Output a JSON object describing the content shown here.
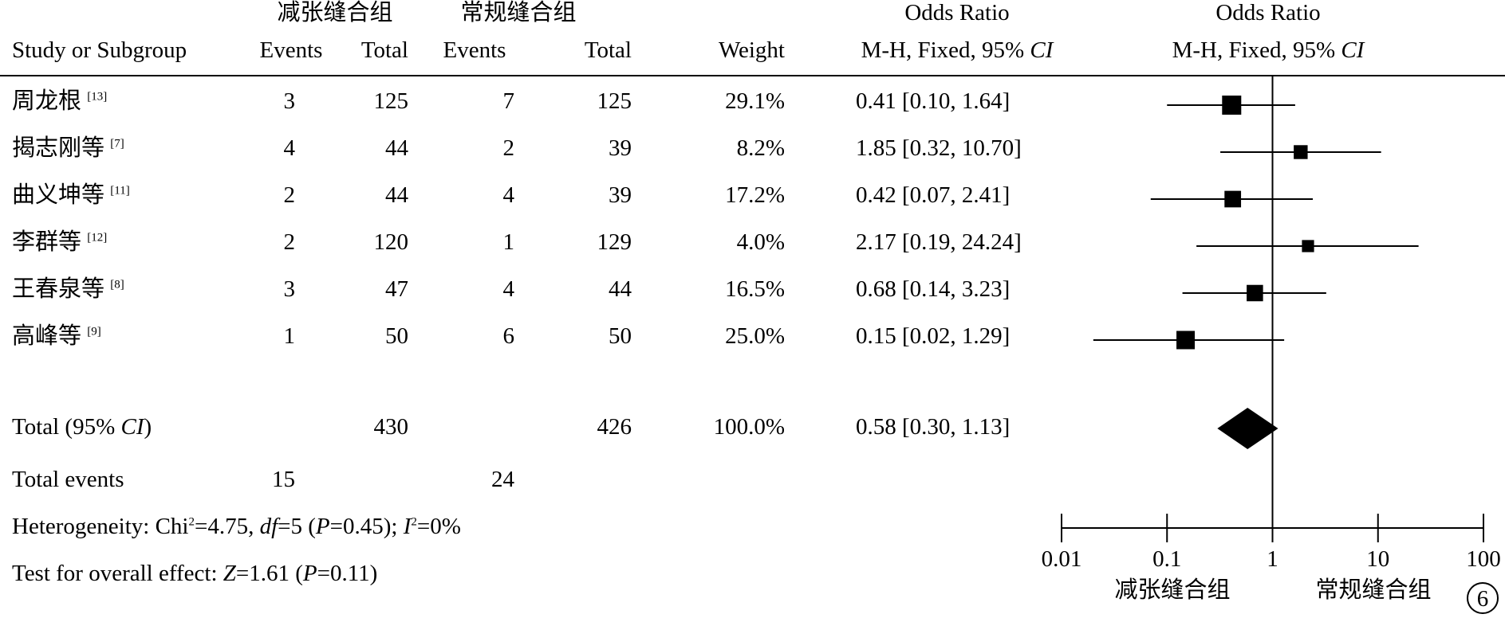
{
  "header": {
    "group_a": "减张缝合组",
    "group_b": "常规缝合组",
    "or_title": "Odds Ratio",
    "or_title_plot": "Odds Ratio",
    "col_study": "Study or Subgroup",
    "col_events_a": "Events",
    "col_total_a": "Total",
    "col_events_b": "Events",
    "col_total_b": "Total",
    "col_weight": "Weight",
    "col_method": "M-H, Fixed, 95%",
    "col_method_ci": "CI",
    "col_method_plot": "M-H, Fixed, 95%",
    "col_method_plot_ci": "CI"
  },
  "studies": [
    {
      "name": "周龙根",
      "ref": "[13]",
      "events_a": "3",
      "total_a": "125",
      "events_b": "7",
      "total_b": "125",
      "weight": "29.1%",
      "or_text": "0.41 [0.10, 1.64]"
    },
    {
      "name": "揭志刚等",
      "ref": "[7]",
      "events_a": "4",
      "total_a": "44",
      "events_b": "2",
      "total_b": "39",
      "weight": "8.2%",
      "or_text": "1.85 [0.32, 10.70]"
    },
    {
      "name": "曲义坤等",
      "ref": "[11]",
      "events_a": "2",
      "total_a": "44",
      "events_b": "4",
      "total_b": "39",
      "weight": "17.2%",
      "or_text": "0.42 [0.07, 2.41]"
    },
    {
      "name": "李群等",
      "ref": "[12]",
      "events_a": "2",
      "total_a": "120",
      "events_b": "1",
      "total_b": "129",
      "weight": "4.0%",
      "or_text": "2.17 [0.19, 24.24]"
    },
    {
      "name": "王春泉等",
      "ref": "[8]",
      "events_a": "3",
      "total_a": "47",
      "events_b": "4",
      "total_b": "44",
      "weight": "16.5%",
      "or_text": "0.68 [0.14, 3.23]"
    },
    {
      "name": "高峰等",
      "ref": "[9]",
      "events_a": "1",
      "total_a": "50",
      "events_b": "6",
      "total_b": "50",
      "weight": "25.0%",
      "or_text": "0.15 [0.02, 1.29]"
    }
  ],
  "total": {
    "label": "Total (95%",
    "label_ci": "CI",
    "label_close": ")",
    "total_a": "430",
    "total_b": "426",
    "weight": "100.0%",
    "or_text": "0.58 [0.30, 1.13]"
  },
  "total_events": {
    "label": "Total events",
    "events_a": "15",
    "events_b": "24"
  },
  "heterogeneity": {
    "label": "Heterogeneity: Chi",
    "sup2": "2",
    "chi_val": "=4.75,",
    "df_label": "df",
    "df_val": "=5 (",
    "p_label": "P",
    "p_val": "=0.45);",
    "i_label": "I",
    "i_sup": "2",
    "i_val": "=0%"
  },
  "overall": {
    "label": "Test for overall effect:",
    "z_label": "Z",
    "z_val": "=1.61 (",
    "p_label": "P",
    "p_val": "=0.11)"
  },
  "axis": {
    "favours_left": "减张缝合组",
    "favours_right": "常规缝合组",
    "panel_badge": "6"
  },
  "chart_data": {
    "type": "forest",
    "x_scale": "log",
    "xlim": [
      0.01,
      100
    ],
    "ticks": [
      0.01,
      0.1,
      1,
      10,
      100
    ],
    "tick_labels": [
      "0.01",
      "0.1",
      "1",
      "10",
      "100"
    ],
    "reference_line": 1,
    "points": [
      {
        "or": 0.41,
        "lo": 0.1,
        "hi": 1.64,
        "weight": 29.1
      },
      {
        "or": 1.85,
        "lo": 0.32,
        "hi": 10.7,
        "weight": 8.2
      },
      {
        "or": 0.42,
        "lo": 0.07,
        "hi": 2.41,
        "weight": 17.2
      },
      {
        "or": 2.17,
        "lo": 0.19,
        "hi": 24.24,
        "weight": 4.0
      },
      {
        "or": 0.68,
        "lo": 0.14,
        "hi": 3.23,
        "weight": 16.5
      },
      {
        "or": 0.15,
        "lo": 0.02,
        "hi": 1.29,
        "weight": 25.0
      }
    ],
    "pooled": {
      "or": 0.58,
      "lo": 0.3,
      "hi": 1.13
    }
  }
}
